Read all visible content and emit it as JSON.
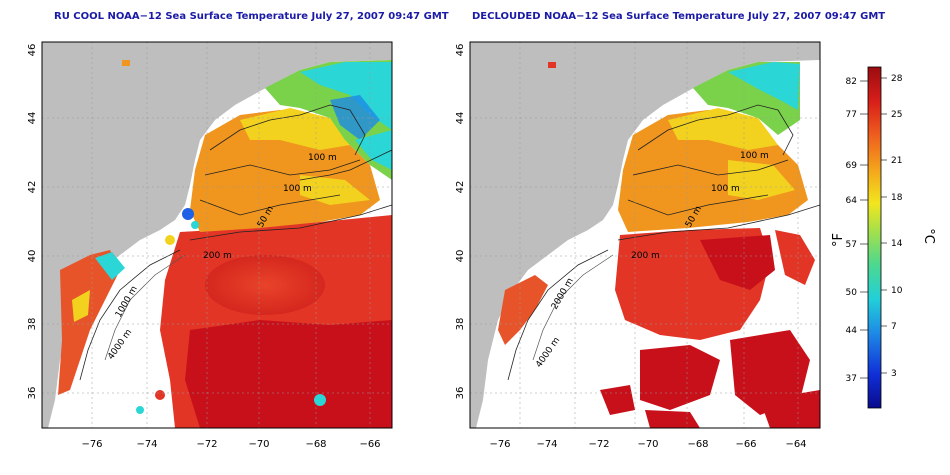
{
  "panels": [
    {
      "title": "RU COOL NOAA−12 Sea Surface Temperature July 27, 2007 09:47 GMT"
    },
    {
      "title": "DECLOUDED NOAA−12 Sea Surface Temperature July 27, 2007 09:47 GMT"
    }
  ],
  "axes": {
    "lat_ticks": [
      "46",
      "44",
      "42",
      "40",
      "38",
      "36"
    ],
    "lon_ticks": [
      "−76",
      "−74",
      "−72",
      "−70",
      "−68",
      "−66",
      "−64"
    ]
  },
  "contour_labels": {
    "m100a": "100 m",
    "m100b": "100 m",
    "m50": "50 m",
    "m200": "200 m",
    "m1000": "1000 m",
    "m2000": "2000 m",
    "m4000": "4000 m"
  },
  "colorbar": {
    "f_unit": "°F",
    "c_unit": "°C",
    "f_ticks": [
      "82",
      "77",
      "69",
      "64",
      "57",
      "50",
      "44",
      "37"
    ],
    "c_ticks": [
      "28",
      "25",
      "21",
      "18",
      "14",
      "10",
      "7",
      "3"
    ]
  },
  "colors": {
    "land": "#bebebe",
    "warm": "#e23526",
    "hot": "#c8101a",
    "orange": "#f0961e",
    "yellow": "#f2d21e",
    "green": "#7ad24a",
    "cyan": "#2ad6d6",
    "blue": "#1e60e6",
    "title": "#1a1aa6"
  }
}
